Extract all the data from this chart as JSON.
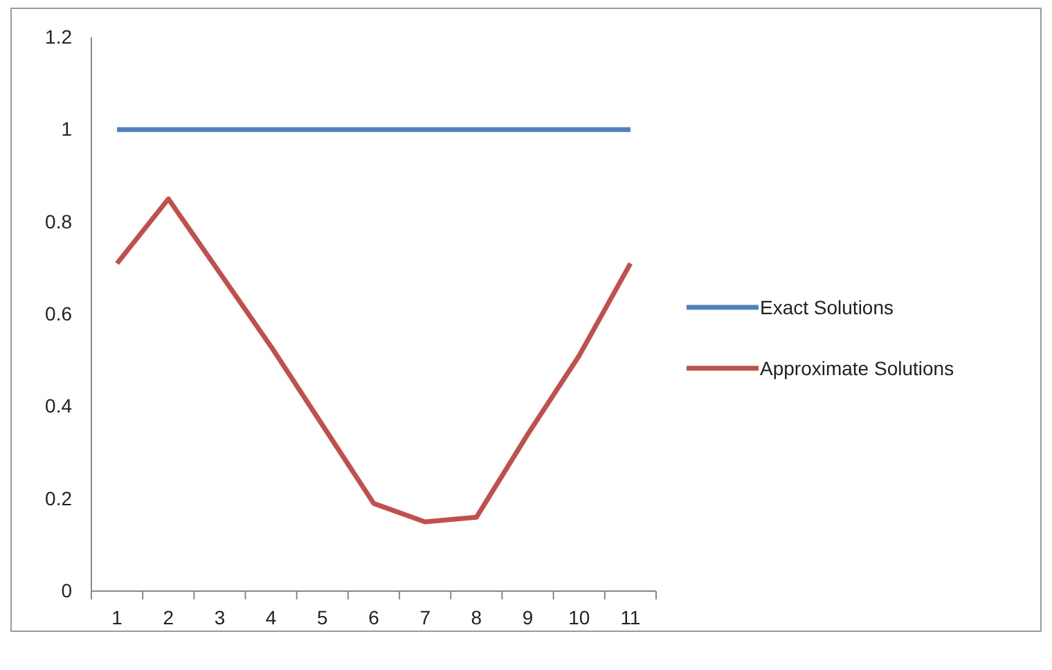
{
  "chart_data": {
    "type": "line",
    "categories": [
      "1",
      "2",
      "3",
      "4",
      "5",
      "6",
      "7",
      "8",
      "9",
      "10",
      "11"
    ],
    "series": [
      {
        "name": "Exact Solutions",
        "color": "#4f81bd",
        "values": [
          1,
          1,
          1,
          1,
          1,
          1,
          1,
          1,
          1,
          1,
          1
        ]
      },
      {
        "name": "Approximate Solutions",
        "color": "#c0504d",
        "values": [
          0.71,
          0.85,
          0.69,
          0.53,
          0.36,
          0.19,
          0.15,
          0.16,
          0.34,
          0.51,
          0.71
        ]
      }
    ],
    "ylim": [
      0,
      1.2
    ],
    "yticks": [
      0,
      0.2,
      0.4,
      0.6,
      0.8,
      1,
      1.2
    ],
    "legend": "right",
    "marker": "none",
    "line_style": "solid"
  }
}
